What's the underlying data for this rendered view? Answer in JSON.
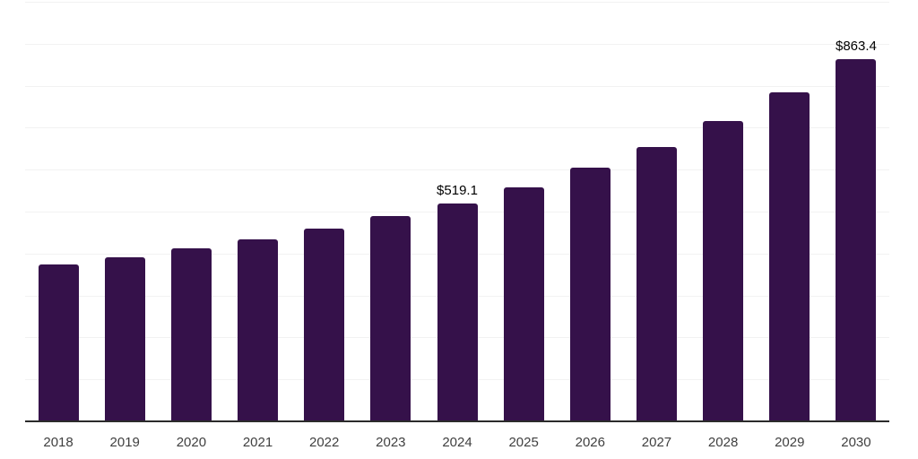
{
  "chart_data": {
    "type": "bar",
    "title": "",
    "xlabel": "",
    "ylabel": "",
    "categories": [
      "2018",
      "2019",
      "2020",
      "2021",
      "2022",
      "2023",
      "2024",
      "2025",
      "2026",
      "2027",
      "2028",
      "2029",
      "2030"
    ],
    "values": [
      374,
      390,
      412,
      433,
      460,
      489,
      519.1,
      558,
      604,
      654,
      715,
      784,
      863.4
    ],
    "value_labels": [
      null,
      null,
      null,
      null,
      null,
      null,
      "$519.1",
      null,
      null,
      null,
      null,
      null,
      "$863.4"
    ],
    "ylim": [
      0,
      1000
    ],
    "gridline_interval": 100,
    "grid": true,
    "y_axis_tick_labels_visible": false,
    "legend_position": "none",
    "colors": {
      "bar": "#35114A",
      "gridline": "#F2F2F2",
      "axis_line": "#2B2B2B",
      "x_tick_label": "#404040",
      "value_label": "#000000",
      "background": "#FFFFFF"
    }
  }
}
